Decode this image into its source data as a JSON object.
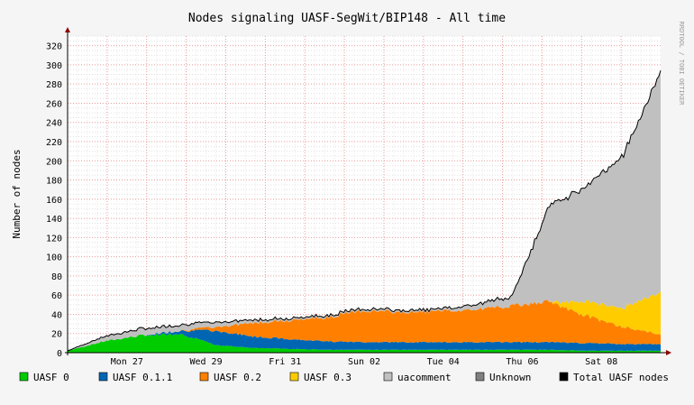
{
  "chart_data": {
    "type": "area",
    "title": "Nodes signaling UASF-SegWit/BIP148 - All time",
    "ylabel": "Number of nodes",
    "watermark": "RRDTOOL / TOBI OETIKER",
    "ylim": [
      0,
      330
    ],
    "yticks": [
      0,
      20,
      40,
      60,
      80,
      100,
      120,
      140,
      160,
      180,
      200,
      220,
      240,
      260,
      280,
      300,
      320
    ],
    "x_range_days": [
      "Mar 25",
      "Apr 09"
    ],
    "xtick_labels": [
      "Mon 27",
      "Wed 29",
      "Fri 31",
      "Sun 02",
      "Tue 04",
      "Thu 06",
      "Sat 08"
    ],
    "grid": true,
    "legend_position": "bottom",
    "stacked": true,
    "series": [
      {
        "name": "UASF 0",
        "color": "#00cc00"
      },
      {
        "name": "UASF 0.1.1",
        "color": "#0066b3"
      },
      {
        "name": "UASF 0.2",
        "color": "#ff8000"
      },
      {
        "name": "UASF 0.3",
        "color": "#ffcc00"
      },
      {
        "name": "uacomment",
        "color": "#c0c0c0"
      },
      {
        "name": "Unknown",
        "color": "#808080"
      },
      {
        "name": "Total UASF nodes",
        "color": "#000000"
      }
    ],
    "x": [
      "03-25",
      "03-26",
      "03-27",
      "03-28",
      "03-29",
      "03-30",
      "03-31",
      "04-01",
      "04-02",
      "04-03",
      "04-04",
      "04-05",
      "04-06",
      "04-06 12h",
      "04-07",
      "04-08",
      "04-09"
    ],
    "values": {
      "UASF 0": [
        2,
        12,
        18,
        20,
        8,
        5,
        4,
        3,
        3,
        3,
        3,
        3,
        3,
        3,
        2,
        2,
        2
      ],
      "UASF 0.1.1": [
        0,
        0,
        0,
        3,
        15,
        12,
        10,
        9,
        8,
        8,
        8,
        8,
        8,
        8,
        8,
        7,
        7
      ],
      "UASF 0.2": [
        0,
        0,
        0,
        0,
        4,
        14,
        20,
        25,
        33,
        31,
        32,
        34,
        38,
        42,
        28,
        18,
        10
      ],
      "UASF 0.3": [
        0,
        0,
        0,
        0,
        0,
        0,
        0,
        0,
        0,
        0,
        0,
        0,
        0,
        0,
        15,
        20,
        45
      ],
      "uacomment": [
        0,
        5,
        7,
        6,
        5,
        3,
        2,
        2,
        2,
        2,
        2,
        5,
        10,
        100,
        120,
        160,
        230
      ],
      "Unknown": [
        0,
        0,
        0,
        0,
        0,
        0,
        0,
        0,
        0,
        0,
        0,
        0,
        0,
        0,
        0,
        0,
        0
      ],
      "Total UASF nodes": [
        2,
        17,
        25,
        29,
        32,
        34,
        36,
        39,
        46,
        44,
        45,
        50,
        59,
        153,
        173,
        207,
        294
      ]
    }
  }
}
